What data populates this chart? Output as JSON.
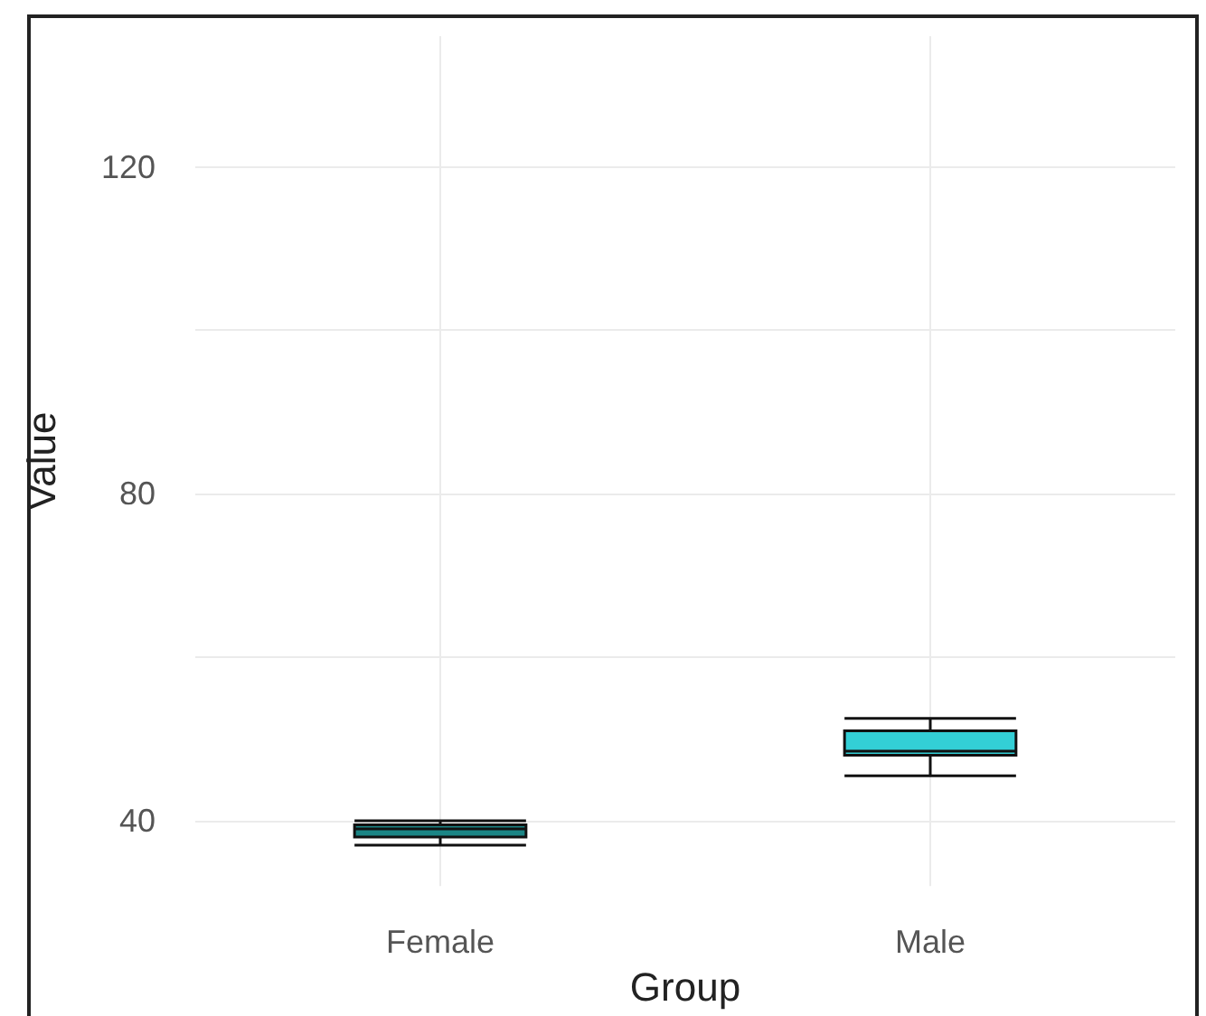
{
  "chart_data": {
    "type": "box",
    "xlabel": "Group",
    "ylabel": "Value",
    "categories": [
      "Female",
      "Male"
    ],
    "colors": [
      "#1b8585",
      "#33cfd6"
    ],
    "boxes": [
      {
        "low": 37,
        "q1": 38,
        "median": 39,
        "q3": 39.5,
        "high": 40
      },
      {
        "low": 45.5,
        "q1": 48,
        "median": 48.5,
        "q3": 51,
        "high": 52.5
      }
    ],
    "ylim": [
      32,
      136
    ],
    "yticks": [
      40,
      {
        "value": 60,
        "label": null
      },
      80,
      {
        "value": 100,
        "label": null
      },
      120
    ],
    "grid": true
  }
}
